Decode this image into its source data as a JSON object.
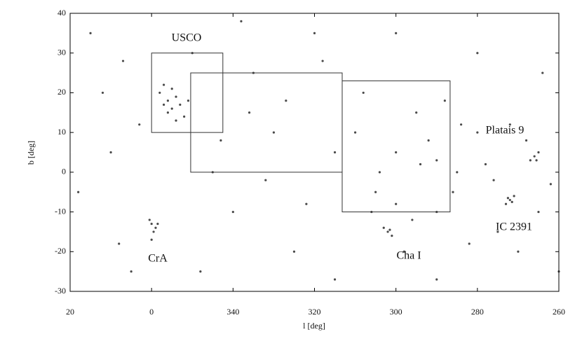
{
  "chart_data": {
    "type": "scatter",
    "xlabel": "l [deg]",
    "ylabel": "b [deg]",
    "xlim": [
      20,
      -100
    ],
    "ylim": [
      -30,
      40
    ],
    "xticks": [
      20,
      0,
      {
        "value": -20,
        "label": "340"
      },
      {
        "value": -40,
        "label": "320"
      },
      {
        "value": -60,
        "label": "300"
      },
      {
        "value": -80,
        "label": "280"
      },
      {
        "value": -100,
        "label": "260"
      }
    ],
    "yticks": [
      -30,
      -20,
      -10,
      0,
      10,
      20,
      30,
      40
    ],
    "color": "#2a2a2a",
    "boxes": [
      {
        "xlim": [
          0,
          -17.5
        ],
        "ylim": [
          10,
          30
        ]
      },
      {
        "xlim": [
          -9.6,
          -46.8
        ],
        "ylim": [
          0,
          25
        ]
      },
      {
        "xlim": [
          -46.8,
          -73.3
        ],
        "ylim": [
          -10,
          23
        ]
      }
    ],
    "annotations": [
      "USCO",
      "Platais 9",
      "IC 2391",
      "Cha I",
      "CrA"
    ],
    "x": [
      -3,
      -4,
      -5,
      -6,
      -7,
      -4,
      -2,
      -8,
      -5,
      -9,
      -3,
      -6,
      0,
      -1,
      -0.5,
      0.5,
      -1.5,
      0,
      -58,
      -59,
      -57,
      -58.5,
      -88,
      -89,
      -87,
      -88.5,
      -87.5,
      -94,
      -93,
      -95,
      -94.5,
      -50,
      -55,
      -60,
      -65,
      -70,
      -75,
      -80,
      -85,
      -90,
      -52,
      -62,
      -68,
      -72,
      -78,
      -82,
      -88,
      -95,
      -98,
      -56,
      -64,
      -74,
      -84,
      -66,
      -76,
      -54,
      -92,
      -60,
      -70,
      15,
      10,
      5,
      -10,
      -15,
      -20,
      -25,
      -30,
      -35,
      -40,
      -45,
      18,
      12,
      -28,
      -33,
      -38,
      -42,
      -22,
      8,
      3,
      -12,
      -60,
      -80,
      -96,
      -100,
      -70,
      -45,
      7,
      -17,
      -24
    ],
    "y": [
      17,
      18,
      16,
      19,
      17,
      15,
      20,
      14,
      21,
      18,
      22,
      13,
      -13,
      -14,
      -15,
      -12,
      -13,
      -17,
      -15,
      -16,
      -14,
      -14.5,
      -7,
      -6,
      -8,
      -7.5,
      -6.5,
      4,
      3,
      5,
      3,
      10,
      -5,
      5,
      15,
      -10,
      0,
      10,
      -15,
      -20,
      20,
      -20,
      8,
      18,
      -18,
      2,
      12,
      -10,
      -3,
      0,
      -12,
      -5,
      -2,
      2,
      12,
      -10,
      8,
      -8,
      3,
      35,
      5,
      -25,
      30,
      0,
      -10,
      25,
      10,
      -20,
      35,
      5,
      -5,
      20,
      -2,
      18,
      -8,
      28,
      38,
      -18,
      12,
      -25,
      35,
      30,
      25,
      -25,
      -27,
      -27,
      28,
      8,
      15
    ]
  }
}
